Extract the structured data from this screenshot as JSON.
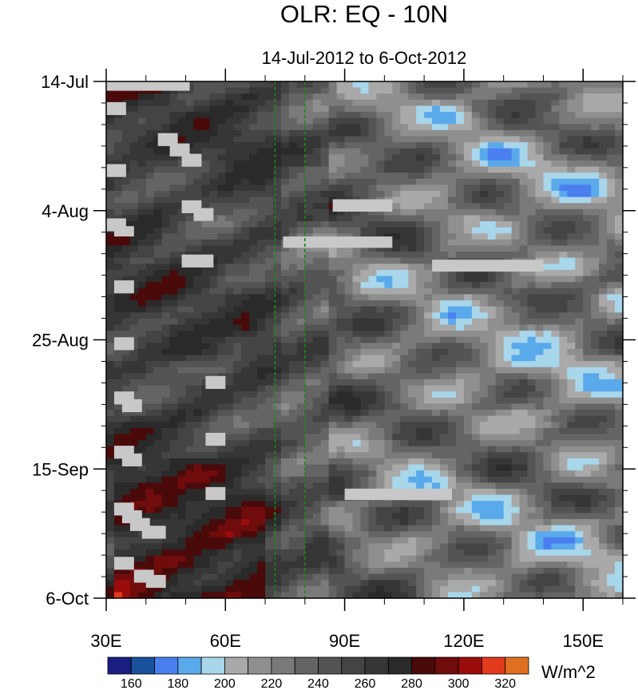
{
  "chart_data": {
    "type": "heatmap",
    "title": "OLR: EQ - 10N",
    "subtitle": "14-Jul-2012 to 6-Oct-2012",
    "x_axis": {
      "range": [
        30,
        160
      ],
      "ticks": [
        30,
        60,
        90,
        120,
        150
      ],
      "tick_labels": [
        "30E",
        "60E",
        "90E",
        "120E",
        "150E"
      ]
    },
    "y_axis": {
      "range": [
        "2012-07-14",
        "2012-10-06"
      ],
      "ticks": [
        "2012-07-14",
        "2012-08-04",
        "2012-08-25",
        "2012-09-15",
        "2012-10-06"
      ],
      "tick_labels": [
        "14-Jul",
        "4-Aug",
        "25-Aug",
        "15-Sep",
        "6-Oct"
      ],
      "reversed": true
    },
    "reference_lines_x": [
      72.5,
      80
    ],
    "colorbar": {
      "units": "W/m^2",
      "levels": [
        160,
        170,
        180,
        190,
        200,
        210,
        220,
        230,
        240,
        250,
        260,
        270,
        280,
        290,
        300,
        310,
        320
      ],
      "labels": [
        "160",
        "180",
        "200",
        "220",
        "240",
        "260",
        "280",
        "300",
        "320"
      ],
      "colors": [
        "#1a1e80",
        "#18529a",
        "#4a7ff0",
        "#5aaaeb",
        "#a8d6ea",
        "#a9a9a9",
        "#8f8f8f",
        "#7a7a7a",
        "#646464",
        "#545454",
        "#444444",
        "#363636",
        "#2a2a2a",
        "#4a0a0a",
        "#700c0c",
        "#9a0c0c",
        "#e23a1c",
        "#e07020"
      ]
    },
    "missing_color": "#c8c8c8"
  }
}
